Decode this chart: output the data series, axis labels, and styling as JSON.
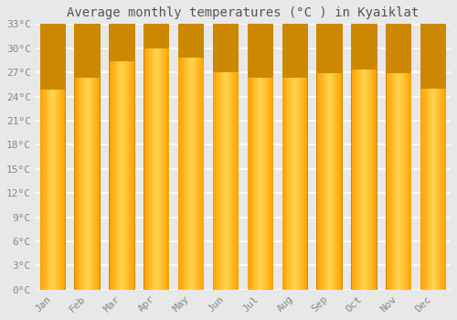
{
  "months": [
    "Jan",
    "Feb",
    "Mar",
    "Apr",
    "May",
    "Jun",
    "Jul",
    "Aug",
    "Sep",
    "Oct",
    "Nov",
    "Dec"
  ],
  "temperatures": [
    25.0,
    26.5,
    28.5,
    30.1,
    29.0,
    27.1,
    26.5,
    26.5,
    27.0,
    27.5,
    27.0,
    25.1
  ],
  "bar_color_center": "#FFD54F",
  "bar_color_edge": "#FFA000",
  "bar_border_color": "#CC8800",
  "title": "Average monthly temperatures (°C ) in Kyaiklat",
  "ylim": [
    0,
    33
  ],
  "ytick_values": [
    0,
    3,
    6,
    9,
    12,
    15,
    18,
    21,
    24,
    27,
    30,
    33
  ],
  "ytick_labels": [
    "0°C",
    "3°C",
    "6°C",
    "9°C",
    "12°C",
    "15°C",
    "18°C",
    "21°C",
    "24°C",
    "27°C",
    "30°C",
    "33°C"
  ],
  "background_color": "#e8e8e8",
  "grid_color": "#ffffff",
  "title_fontsize": 10,
  "tick_fontsize": 8,
  "font_family": "monospace",
  "bar_width": 0.75
}
